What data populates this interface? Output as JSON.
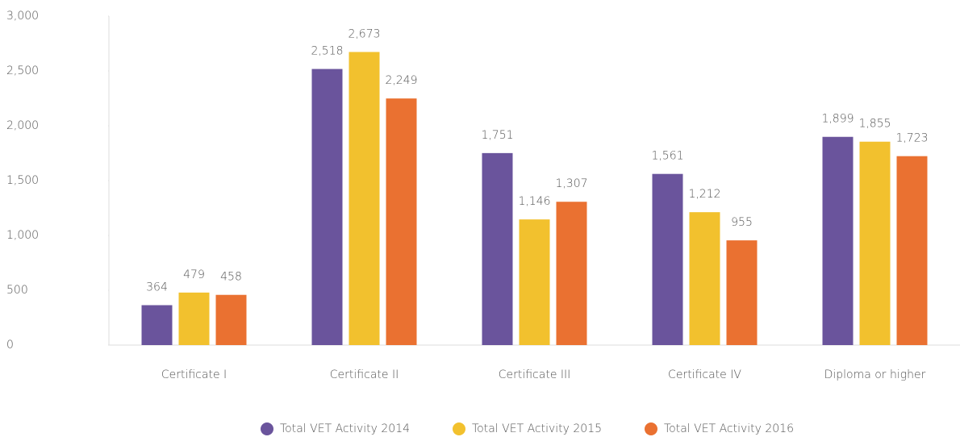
{
  "chart_data": {
    "type": "bar",
    "categories": [
      "Certificate I",
      "Certificate II",
      "Certificate III",
      "Certificate IV",
      "Diploma or higher"
    ],
    "series": [
      {
        "name": "Total VET Activity 2014",
        "color": "#6a549c",
        "values": [
          364,
          2518,
          1751,
          1561,
          1899
        ],
        "value_labels": [
          "364",
          "2,518",
          "1,751",
          "1,561",
          "1,899"
        ]
      },
      {
        "name": "Total VET Activity 2015",
        "color": "#f2c12e",
        "values": [
          479,
          2673,
          1146,
          1212,
          1855
        ],
        "value_labels": [
          "479",
          "2,673",
          "1,146",
          "1,212",
          "1,855"
        ]
      },
      {
        "name": "Total VET Activity 2016",
        "color": "#ea7131",
        "values": [
          458,
          2249,
          1307,
          955,
          1723
        ],
        "value_labels": [
          "458",
          "2,249",
          "1,307",
          "955",
          "1,723"
        ]
      }
    ],
    "ylim": [
      0,
      3000
    ],
    "yticks": [
      0,
      500,
      {
        "value": 1000,
        "label": "1,000"
      },
      {
        "value": 1500,
        "label": "1,500"
      },
      {
        "value": 2000,
        "label": "2,000"
      },
      {
        "value": 2500,
        "label": "2,500"
      },
      {
        "value": 3000,
        "label": "3,000"
      }
    ],
    "legend": "bottom"
  }
}
